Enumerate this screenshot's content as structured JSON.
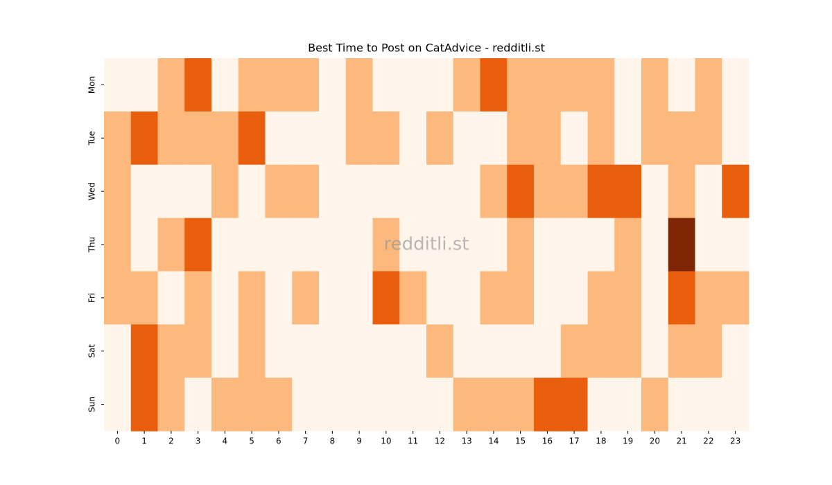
{
  "chart_data": {
    "type": "heatmap",
    "title": "Best Time to Post on CatAdvice - redditli.st",
    "watermark": "redditli.st",
    "x_categories": [
      "0",
      "1",
      "2",
      "3",
      "4",
      "5",
      "6",
      "7",
      "8",
      "9",
      "10",
      "11",
      "12",
      "13",
      "14",
      "15",
      "16",
      "17",
      "18",
      "19",
      "20",
      "21",
      "22",
      "23"
    ],
    "y_categories": [
      "Mon",
      "Tue",
      "Wed",
      "Thu",
      "Fri",
      "Sat",
      "Sun"
    ],
    "values": [
      [
        0,
        0,
        1,
        2,
        0,
        1,
        1,
        1,
        0,
        1,
        0,
        0,
        0,
        1,
        2,
        1,
        1,
        1,
        1,
        0,
        1,
        0,
        1,
        0
      ],
      [
        1,
        2,
        1,
        1,
        1,
        2,
        0,
        0,
        0,
        1,
        1,
        0,
        1,
        0,
        0,
        1,
        1,
        0,
        1,
        0,
        1,
        1,
        1,
        0
      ],
      [
        1,
        0,
        0,
        0,
        1,
        0,
        1,
        1,
        0,
        0,
        0,
        0,
        0,
        0,
        1,
        2,
        1,
        1,
        2,
        2,
        0,
        1,
        0,
        2
      ],
      [
        1,
        0,
        1,
        2,
        0,
        0,
        0,
        0,
        0,
        0,
        1,
        0,
        0,
        0,
        0,
        1,
        0,
        0,
        0,
        1,
        0,
        3,
        0,
        0
      ],
      [
        1,
        1,
        0,
        1,
        0,
        1,
        0,
        1,
        0,
        0,
        2,
        1,
        0,
        0,
        1,
        1,
        0,
        0,
        1,
        1,
        0,
        2,
        1,
        1
      ],
      [
        0,
        2,
        1,
        1,
        0,
        1,
        0,
        0,
        0,
        0,
        0,
        0,
        1,
        0,
        0,
        0,
        0,
        1,
        1,
        1,
        0,
        1,
        1,
        0
      ],
      [
        0,
        2,
        1,
        0,
        1,
        1,
        1,
        0,
        0,
        0,
        0,
        0,
        0,
        1,
        1,
        1,
        2,
        2,
        0,
        0,
        1,
        0,
        0,
        0
      ]
    ],
    "zlim": [
      0,
      3
    ],
    "colorscale": [
      "#fff5eb",
      "#fdb97d",
      "#e95e0d",
      "#7f2704"
    ]
  }
}
